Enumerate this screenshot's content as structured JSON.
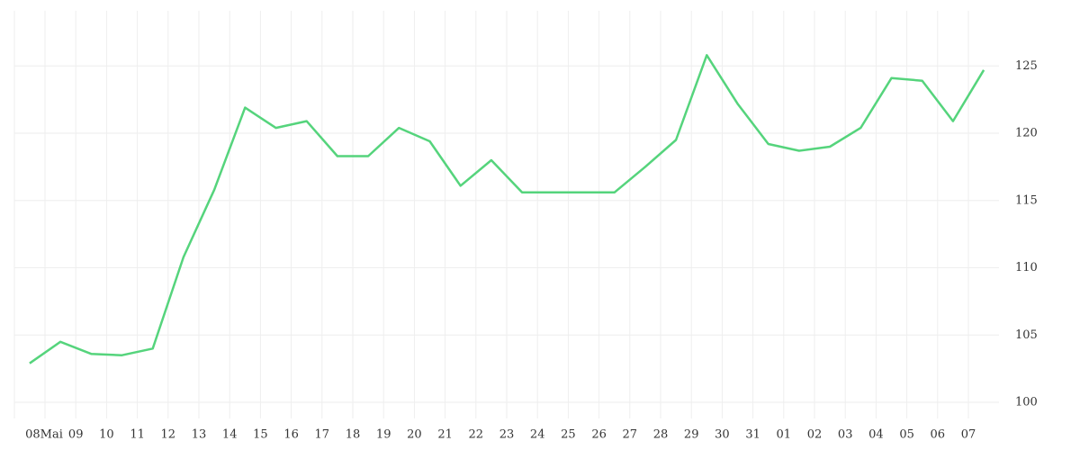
{
  "chart_data": {
    "type": "line",
    "xtick_labels": [
      "08Mai",
      "09",
      "10",
      "11",
      "12",
      "13",
      "14",
      "15",
      "16",
      "17",
      "18",
      "19",
      "20",
      "21",
      "22",
      "23",
      "24",
      "25",
      "26",
      "27",
      "28",
      "29",
      "30",
      "31",
      "01",
      "02",
      "03",
      "04",
      "05",
      "06",
      "07"
    ],
    "series": [
      {
        "color": "#55d47c",
        "values": [
          102.9,
          104.5,
          103.6,
          103.5,
          104.0,
          110.8,
          115.8,
          121.9,
          120.4,
          120.9,
          118.3,
          118.3,
          120.4,
          119.4,
          116.1,
          118.0,
          115.6,
          115.6,
          115.6,
          115.6,
          117.5,
          119.5,
          125.8,
          122.2,
          119.2,
          118.7,
          119.0,
          120.4,
          124.1,
          123.9,
          120.9,
          124.7
        ]
      }
    ],
    "ylim": [
      98.8,
      129.1
    ],
    "yticks": [
      100,
      105,
      110,
      115,
      120,
      125
    ],
    "grid": true
  }
}
